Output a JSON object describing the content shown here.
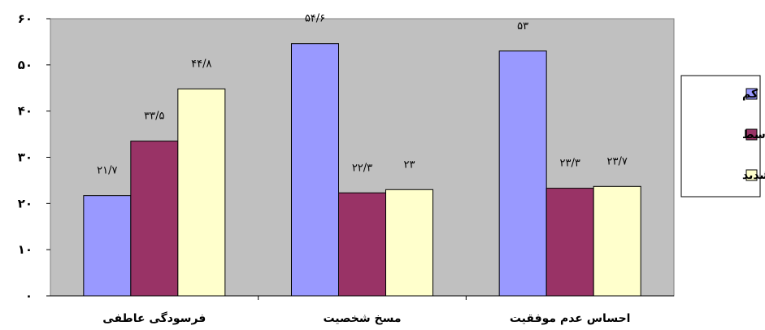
{
  "chart_data": {
    "type": "bar",
    "categories": [
      "فرسودگی عاطفی",
      "مسخ شخصیت",
      "احساس عدم موفقیت"
    ],
    "series": [
      {
        "name": "کم",
        "color": "#9999ff",
        "values": [
          21.7,
          54.6,
          53
        ],
        "labels": [
          "۲۱/۷",
          "۵۴/۶",
          "۵۳"
        ]
      },
      {
        "name": "متوسط",
        "color": "#993366",
        "values": [
          33.5,
          22.3,
          23.3
        ],
        "labels": [
          "۳۳/۵",
          "۲۲/۳",
          "۲۳/۳"
        ]
      },
      {
        "name": "شدید",
        "color": "#ffffcc",
        "values": [
          44.8,
          23,
          23.7
        ],
        "labels": [
          "۴۴/۸",
          "۲۳",
          "۲۳/۷"
        ]
      }
    ],
    "ylim": [
      0,
      60
    ],
    "yticks": [
      0,
      10,
      20,
      30,
      40,
      50,
      60
    ],
    "ytick_labels": [
      "۰",
      "۱۰",
      "۲۰",
      "۳۰",
      "۴۰",
      "۵۰",
      "۶۰"
    ],
    "plot_background": "#c0c0c0",
    "grid": false,
    "legend_position": "right"
  }
}
